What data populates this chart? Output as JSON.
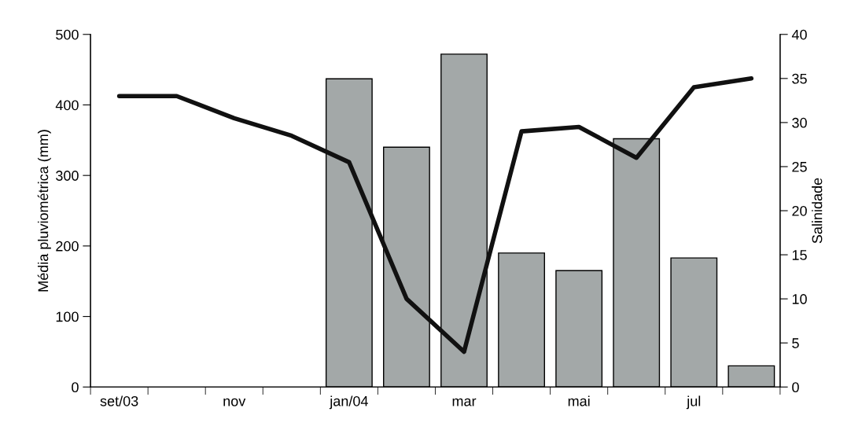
{
  "chart_data": {
    "type": "bar",
    "categories": [
      "set/03",
      null,
      "nov",
      null,
      "jan/04",
      null,
      "mar",
      null,
      "mai",
      null,
      "jul",
      null
    ],
    "ylabel": "Média pluviométrica (mm)",
    "y2label": "Salinidade",
    "series": [
      {
        "color": "#a3a8a8",
        "values": [
          null,
          null,
          null,
          null,
          437,
          340,
          472,
          190,
          165,
          352,
          183,
          30
        ]
      },
      {
        "type": "line",
        "axis": "y2",
        "color": "#111111",
        "values": [
          33,
          33,
          30.5,
          28.5,
          25.5,
          10,
          4,
          29,
          29.5,
          26,
          34,
          35
        ]
      }
    ],
    "ylim": [
      0,
      500
    ],
    "yticks": [
      0,
      100,
      200,
      300,
      400,
      500
    ],
    "y2lim": [
      0,
      40
    ],
    "y2ticks": [
      0,
      5,
      10,
      15,
      20,
      25,
      30,
      35,
      40
    ],
    "grid": false
  }
}
